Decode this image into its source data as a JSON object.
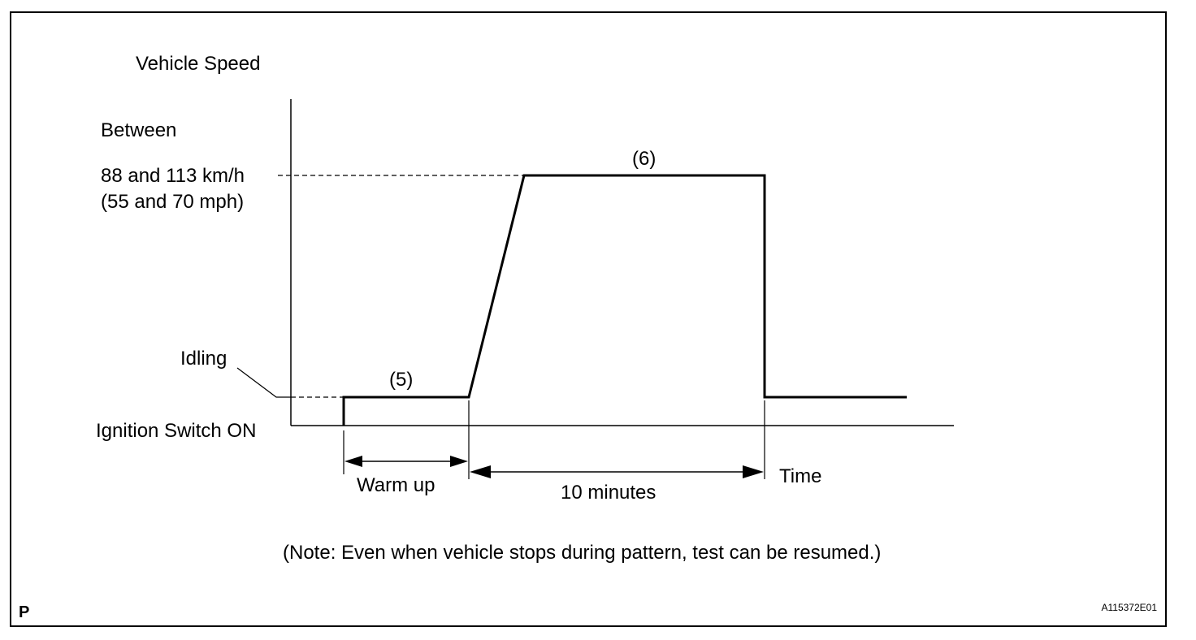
{
  "diagram": {
    "y_axis_title": "Vehicle Speed",
    "speed_label_1": "Between",
    "speed_label_2": "88 and 113 km/h",
    "speed_label_3": "(55 and 70 mph)",
    "idling_label": "Idling",
    "ignition_label": "Ignition Switch ON",
    "step_5_label": "(5)",
    "step_6_label": "(6)",
    "warm_up_label": "Warm up",
    "duration_label": "10 minutes",
    "time_axis_label": "Time",
    "note": "(Note: Even when vehicle stops during pattern, test can be resumed.)",
    "corner_mark": "P",
    "figure_code": "A115372E01"
  }
}
